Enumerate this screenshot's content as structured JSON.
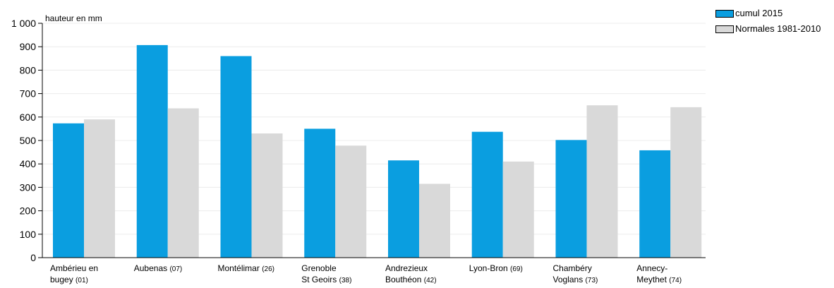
{
  "chart_data": {
    "type": "bar",
    "unit_label": "hauteur en mm",
    "ylim": [
      0,
      1000
    ],
    "yticks": [
      {
        "value": 0,
        "label": "0"
      },
      {
        "value": 100,
        "label": "100"
      },
      {
        "value": 200,
        "label": "200"
      },
      {
        "value": 300,
        "label": "300"
      },
      {
        "value": 400,
        "label": "400"
      },
      {
        "value": 500,
        "label": "500"
      },
      {
        "value": 600,
        "label": "600"
      },
      {
        "value": 700,
        "label": "700"
      },
      {
        "value": 800,
        "label": "800"
      },
      {
        "value": 900,
        "label": "900"
      },
      {
        "value": 1000,
        "label": "1 000"
      }
    ],
    "categories": [
      {
        "line1": "Ambérieu en",
        "line2": "bugey",
        "code": "(01)"
      },
      {
        "line1": "Aubenas",
        "line2": "",
        "code": "(07)"
      },
      {
        "line1": "Montélimar",
        "line2": "",
        "code": "(26)"
      },
      {
        "line1": "Grenoble",
        "line2": "St Geoirs",
        "code": "(38)"
      },
      {
        "line1": "Andrezieux",
        "line2": "Bouthéon",
        "code": "(42)"
      },
      {
        "line1": "Lyon-Bron",
        "line2": "",
        "code": "(69)"
      },
      {
        "line1": "Chambéry",
        "line2": "Voglans",
        "code": "(73)"
      },
      {
        "line1": "Annecy-",
        "line2": "Meythet",
        "code": "(74)"
      }
    ],
    "series": [
      {
        "name": "cumul 2015",
        "color": "#0a9ee0",
        "values": [
          573,
          907,
          860,
          550,
          415,
          537,
          502,
          458
        ]
      },
      {
        "name": "Normales 1981-2010",
        "color": "#d9d9d9",
        "values": [
          590,
          637,
          530,
          478,
          315,
          410,
          650,
          642
        ]
      }
    ],
    "grid": true,
    "legend_position": "top-right"
  }
}
